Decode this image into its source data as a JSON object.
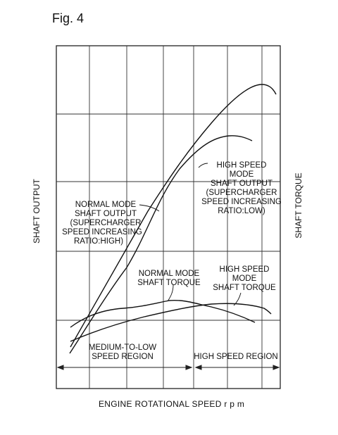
{
  "figure_title": "Fig. 4",
  "y_axis_left_label": "SHAFT OUTPUT",
  "y_axis_right_label": "SHAFT TORQUE",
  "x_axis_label": "ENGINE ROTATIONAL SPEED r p m",
  "labels": {
    "normal_output": [
      "NORMAL MODE",
      "SHAFT OUTPUT",
      "(SUPERCHARGER",
      "SPEED INCREASING",
      "RATIO:HIGH)"
    ],
    "high_output": [
      "HIGH SPEED",
      "MODE",
      "SHAFT OUTPUT",
      "(SUPERCHARGER",
      "SPEED INCREASING",
      "RATIO:LOW)"
    ],
    "normal_torque": [
      "NORMAL MODE",
      "SHAFT TORQUE"
    ],
    "high_torque": [
      "HIGH SPEED",
      "MODE",
      "SHAFT TORQUE"
    ],
    "region_low": [
      "MEDIUM-TO-LOW",
      "SPEED REGION"
    ],
    "region_high": [
      "HIGH SPEED REGION"
    ]
  }
}
